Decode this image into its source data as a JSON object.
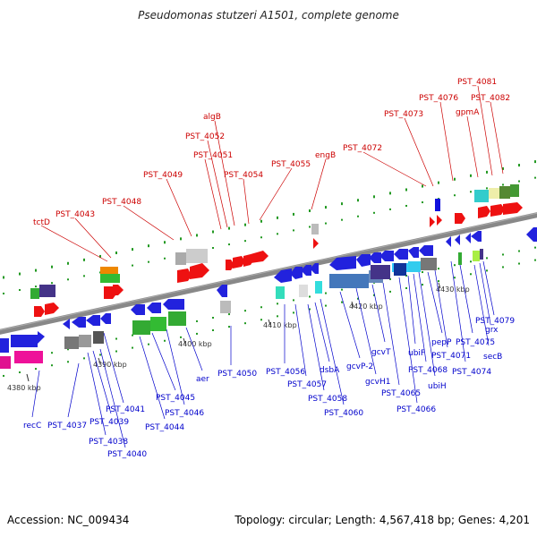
{
  "title": "Pseudomonas stutzeri A1501, complete genome",
  "footer": {
    "accession": "Accession: NC_009434",
    "topology": "Topology: circular; Length: 4,567,418 bp; Genes: 4,201"
  },
  "scale_labels": [
    "4380 kbp",
    "4390 kbp",
    "4400 kbp",
    "4410 kbp",
    "4420 kbp",
    "4430 kbp"
  ],
  "top_labels": [
    "tctD",
    "PST_4043",
    "PST_4048",
    "PST_4049",
    "PST_4051",
    "PST_4052",
    "algB",
    "PST_4054",
    "PST_4055",
    "engB",
    "PST_4072",
    "PST_4073",
    "PST_4076",
    "gpmA",
    "PST_4081",
    "PST_4082"
  ],
  "bottom_labels": [
    "recC",
    "PST_4037",
    "PST_4038",
    "PST_4039",
    "PST_4040",
    "PST_4041",
    "PST_4044",
    "PST_4045",
    "PST_4046",
    "aer",
    "PST_4050",
    "PST_4056",
    "PST_4057",
    "dsbA",
    "PST_4058",
    "PST_4060",
    "gcvP-2",
    "gcvH1",
    "gcvT",
    "PST_4065",
    "PST_4066",
    "ubiF",
    "PST_4068",
    "ubiH",
    "pepP",
    "PST_4071",
    "PST_4074",
    "PST_4075",
    "secB",
    "grx",
    "PST_4079"
  ],
  "colors": {
    "forward_gene": "#ee1111",
    "reverse_gene": "#1111dd",
    "top_label": "#cc0000",
    "bottom_label": "#0000cc",
    "backbone": "#888888",
    "tick": "#229922"
  }
}
